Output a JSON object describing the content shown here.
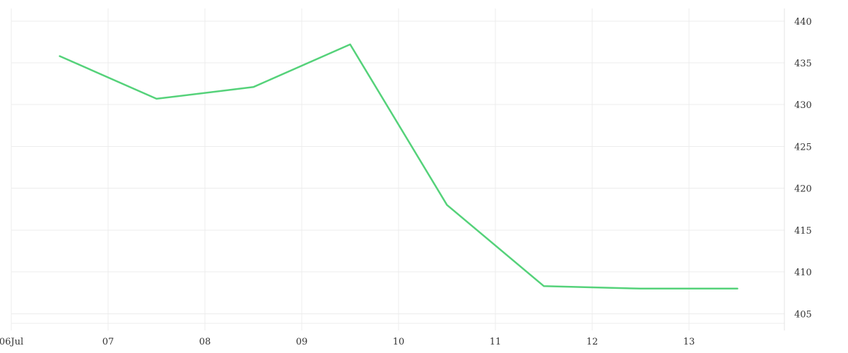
{
  "chart_data": {
    "type": "line",
    "x_ticks": [
      "06Jul",
      "07",
      "08",
      "09",
      "10",
      "11",
      "12",
      "13"
    ],
    "x": [
      "2024-07-06T12:00",
      "2024-07-07T12:00",
      "2024-07-08T12:00",
      "2024-07-09T12:00",
      "2024-07-10T12:00",
      "2024-07-11T12:00",
      "2024-07-12T12:00",
      "2024-07-13T12:00"
    ],
    "series": [
      {
        "color": "#55d27a",
        "values": [
          435.8,
          430.7,
          432.1,
          437.2,
          418.0,
          408.3,
          408.0,
          408.0
        ]
      }
    ],
    "y_ticks": [
      405,
      410,
      415,
      420,
      425,
      430,
      435,
      440
    ],
    "ylim": [
      403,
      441.5
    ],
    "y_axis_position": "right",
    "grid": true,
    "legend": "none"
  }
}
